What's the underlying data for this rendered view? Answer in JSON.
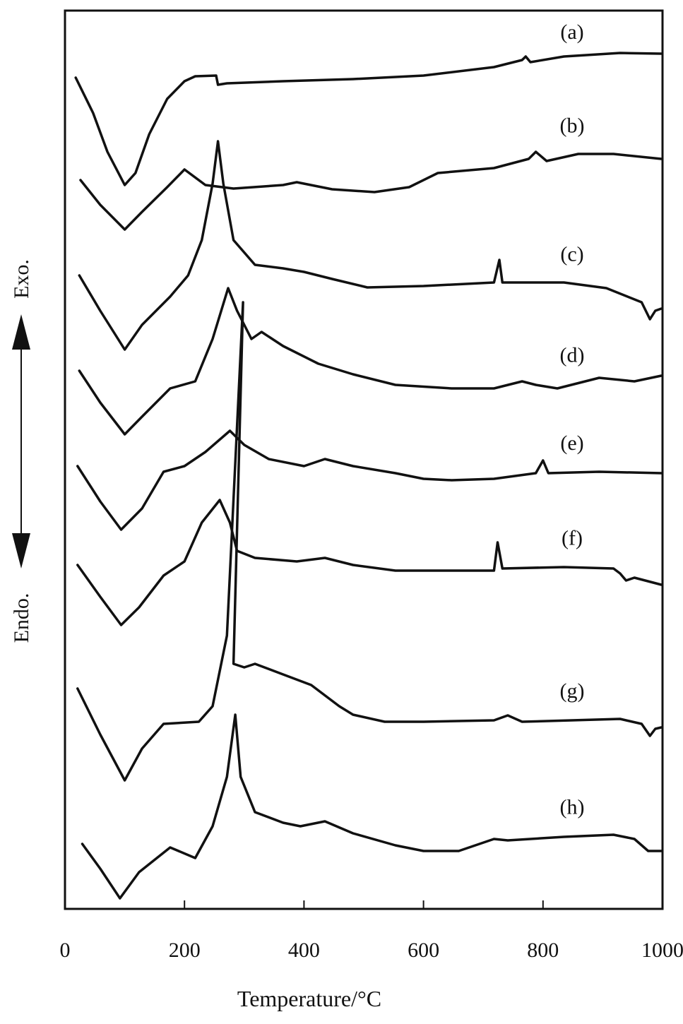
{
  "chart_data": {
    "type": "line",
    "x_label": "Temperature/°C",
    "y_label_top": "Exo.",
    "y_label_bottom": "Endo.",
    "xlim": [
      0,
      1000
    ],
    "xticks": [
      0,
      200,
      400,
      600,
      800,
      1000
    ],
    "ylim": [
      0,
      1272
    ],
    "series": [
      {
        "name": "(a)",
        "color": "#111111",
        "x": [
          18,
          47,
          71,
          100,
          118,
          141,
          171,
          200,
          218,
          253,
          256,
          271,
          365,
          482,
          600,
          718,
          765,
          771,
          779,
          835,
          929,
          998
        ],
        "values": [
          1177,
          1127,
          1072,
          1025,
          1042,
          1097,
          1147,
          1172,
          1179,
          1180,
          1167,
          1169,
          1172,
          1175,
          1180,
          1192,
          1202,
          1207,
          1199,
          1207,
          1212,
          1211
        ]
      },
      {
        "name": "(b)",
        "color": "#111111",
        "x": [
          26,
          59,
          100,
          129,
          171,
          200,
          235,
          282,
          365,
          388,
          447,
          518,
          576,
          624,
          718,
          776,
          788,
          806,
          859,
          918,
          998
        ],
        "values": [
          1032,
          997,
          962,
          987,
          1022,
          1047,
          1025,
          1020,
          1025,
          1029,
          1019,
          1015,
          1022,
          1042,
          1049,
          1062,
          1072,
          1059,
          1069,
          1069,
          1062
        ]
      },
      {
        "name": "(c)",
        "color": "#111111",
        "x": [
          24,
          59,
          100,
          129,
          176,
          206,
          229,
          247,
          256,
          265,
          282,
          318,
          365,
          400,
          447,
          506,
          600,
          718,
          727,
          732,
          835,
          906,
          965,
          979,
          988,
          998
        ],
        "values": [
          897,
          847,
          792,
          827,
          867,
          897,
          947,
          1027,
          1087,
          1027,
          947,
          912,
          907,
          902,
          892,
          880,
          882,
          887,
          919,
          887,
          887,
          879,
          859,
          835,
          847,
          850
        ]
      },
      {
        "name": "(d)",
        "color": "#111111",
        "x": [
          24,
          59,
          100,
          129,
          176,
          218,
          247,
          273,
          288,
          312,
          329,
          365,
          424,
          482,
          553,
          647,
          718,
          765,
          788,
          824,
          894,
          953,
          998
        ],
        "values": [
          762,
          717,
          672,
          697,
          737,
          747,
          807,
          879,
          847,
          807,
          817,
          797,
          772,
          757,
          742,
          737,
          737,
          747,
          742,
          737,
          752,
          747,
          755
        ]
      },
      {
        "name": "(e)",
        "color": "#111111",
        "x": [
          21,
          59,
          94,
          129,
          165,
          200,
          235,
          276,
          300,
          341,
          400,
          435,
          482,
          553,
          600,
          647,
          718,
          788,
          800,
          809,
          894,
          998
        ],
        "values": [
          627,
          577,
          537,
          567,
          619,
          627,
          647,
          677,
          657,
          637,
          627,
          637,
          627,
          617,
          609,
          607,
          609,
          617,
          635,
          617,
          619,
          617
        ]
      },
      {
        "name": "(f)",
        "color": "#111111",
        "x": [
          21,
          59,
          94,
          124,
          165,
          200,
          229,
          259,
          276,
          288,
          318,
          388,
          435,
          482,
          553,
          706,
          718,
          724,
          732,
          835,
          918,
          929,
          939,
          953,
          998
        ],
        "values": [
          487,
          442,
          402,
          427,
          472,
          492,
          547,
          579,
          547,
          507,
          497,
          492,
          497,
          487,
          479,
          479,
          479,
          519,
          482,
          484,
          482,
          475,
          465,
          469,
          459
        ]
      },
      {
        "name": "(g)",
        "color": "#111111",
        "x": [
          21,
          59,
          100,
          129,
          165,
          224,
          247,
          271,
          298,
          282,
          300,
          318,
          365,
          412,
          459,
          482,
          535,
          600,
          718,
          741,
          765,
          929,
          965,
          979,
          988,
          998
        ],
        "values": [
          312,
          247,
          182,
          227,
          262,
          265,
          287,
          387,
          859,
          347,
          342,
          347,
          332,
          317,
          287,
          275,
          265,
          265,
          267,
          274,
          265,
          269,
          262,
          245,
          255,
          257
        ]
      },
      {
        "name": "(h)",
        "color": "#111111",
        "x": [
          29,
          59,
          92,
          124,
          176,
          218,
          247,
          271,
          285,
          294,
          318,
          365,
          394,
          435,
          482,
          553,
          600,
          659,
          718,
          741,
          835,
          918,
          953,
          976,
          998
        ],
        "values": [
          92,
          57,
          15,
          52,
          87,
          72,
          117,
          187,
          275,
          187,
          137,
          122,
          117,
          124,
          107,
          90,
          82,
          82,
          99,
          97,
          102,
          105,
          99,
          82,
          82
        ]
      }
    ]
  }
}
